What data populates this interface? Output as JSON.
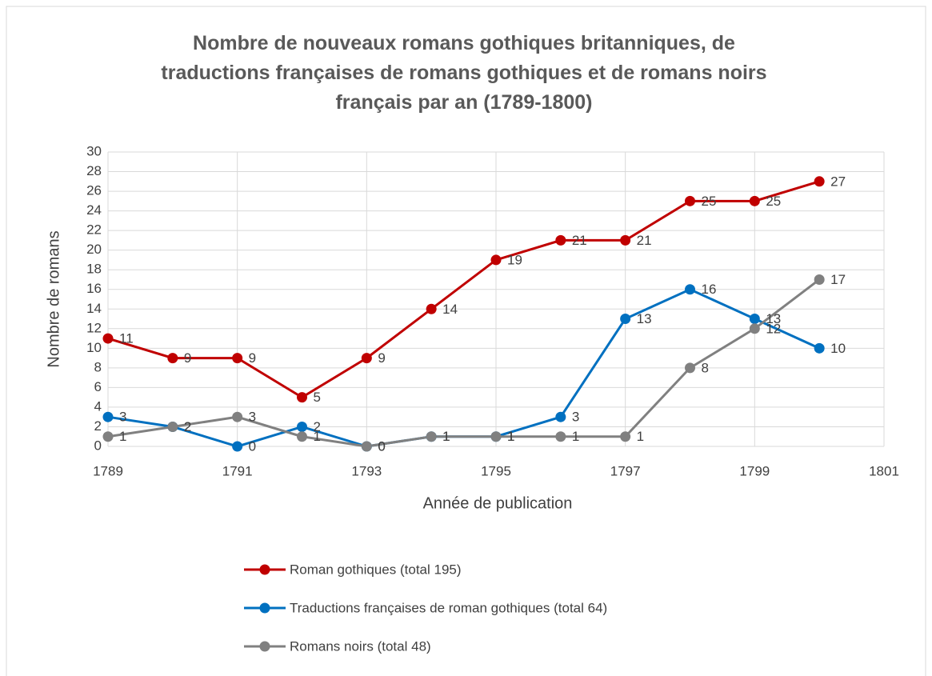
{
  "chart_data": {
    "type": "line",
    "title": "Nombre de nouveaux romans gothiques britanniques, de traductions françaises de romans gothiques et de romans noirs français par an (1789-1800)",
    "xlabel": "Année de publication",
    "ylabel": "Nombre de romans",
    "x": [
      1789,
      1790,
      1791,
      1792,
      1793,
      1794,
      1795,
      1796,
      1797,
      1798,
      1799,
      1800
    ],
    "series": [
      {
        "name": "Roman gothiques (total 195)",
        "color": "#c00000",
        "values": [
          11,
          9,
          9,
          5,
          9,
          14,
          19,
          21,
          21,
          25,
          25,
          27
        ]
      },
      {
        "name": "Traductions françaises de roman gothiques (total 64)",
        "color": "#0070c0",
        "values": [
          3,
          2,
          0,
          2,
          0,
          1,
          1,
          3,
          13,
          16,
          13,
          10
        ]
      },
      {
        "name": "Romans noirs (total 48)",
        "color": "#808080",
        "values": [
          1,
          2,
          3,
          1,
          0,
          1,
          1,
          1,
          1,
          8,
          12,
          17
        ]
      }
    ],
    "xlim": [
      1789,
      1801
    ],
    "xticks": [
      1789,
      1791,
      1793,
      1795,
      1797,
      1799,
      1801
    ],
    "ylim": [
      0,
      30
    ],
    "yticks": [
      0,
      2,
      4,
      6,
      8,
      10,
      12,
      14,
      16,
      18,
      20,
      22,
      24,
      26,
      28,
      30
    ],
    "grid": true,
    "legend": "bottom"
  }
}
